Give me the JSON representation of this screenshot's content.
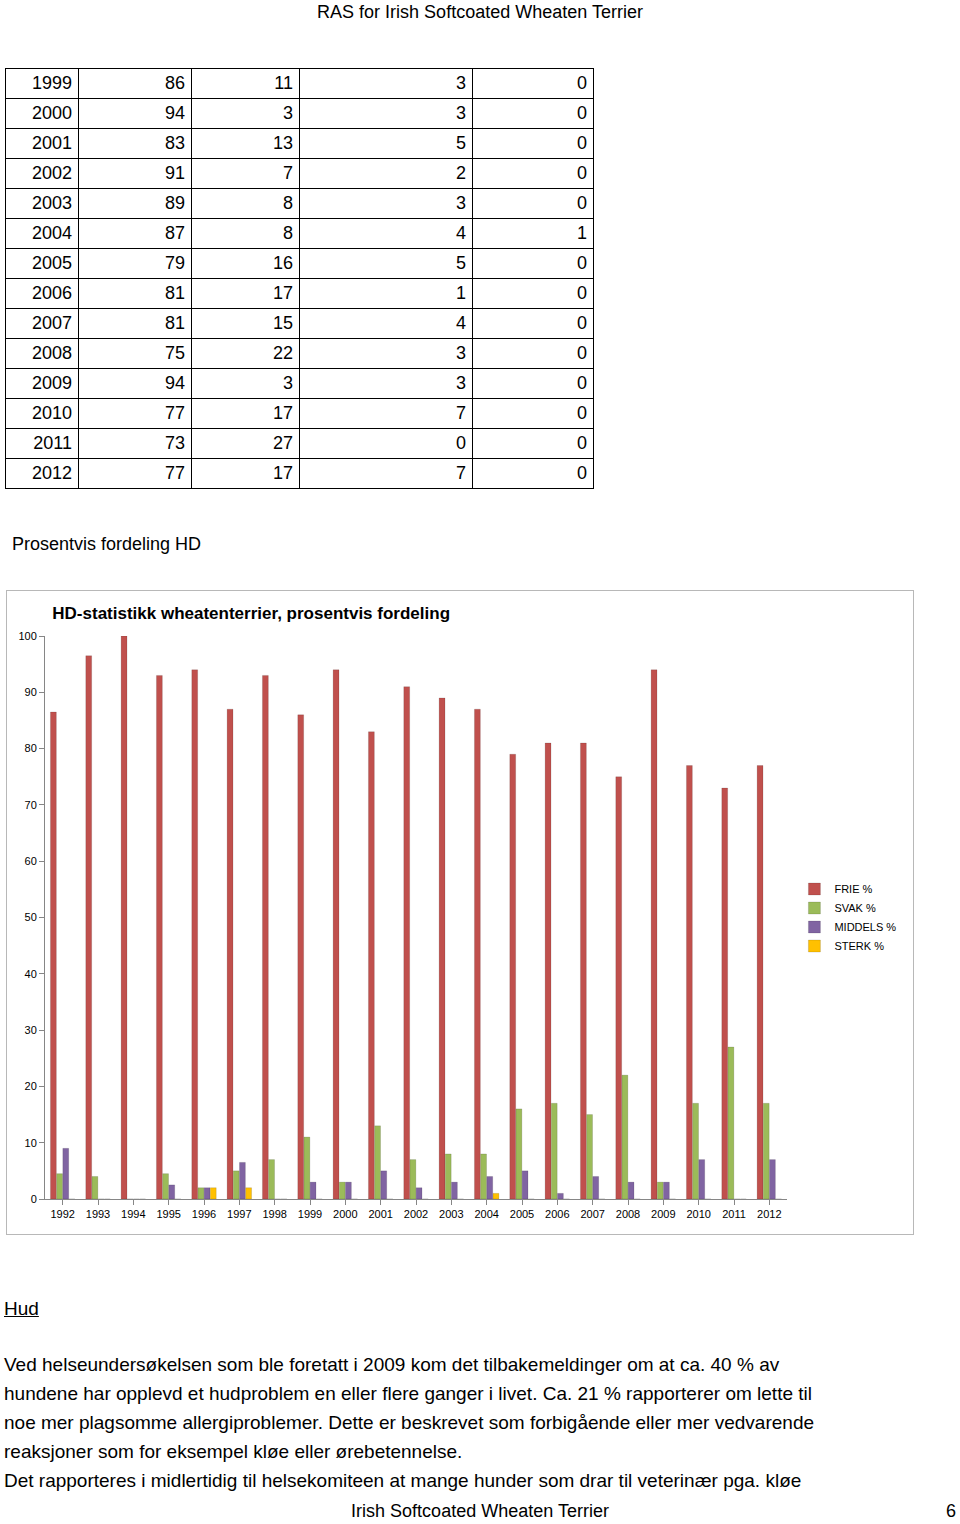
{
  "header": {
    "title": "RAS for Irish Softcoated Wheaten Terrier"
  },
  "table": {
    "rows": [
      [
        1999,
        86,
        11,
        3,
        0
      ],
      [
        2000,
        94,
        3,
        3,
        0
      ],
      [
        2001,
        83,
        13,
        5,
        0
      ],
      [
        2002,
        91,
        7,
        2,
        0
      ],
      [
        2003,
        89,
        8,
        3,
        0
      ],
      [
        2004,
        87,
        8,
        4,
        1
      ],
      [
        2005,
        79,
        16,
        5,
        0
      ],
      [
        2006,
        81,
        17,
        1,
        0
      ],
      [
        2007,
        81,
        15,
        4,
        0
      ],
      [
        2008,
        75,
        22,
        3,
        0
      ],
      [
        2009,
        94,
        3,
        3,
        0
      ],
      [
        2010,
        77,
        17,
        7,
        0
      ],
      [
        2011,
        73,
        27,
        0,
        0
      ],
      [
        2012,
        77,
        17,
        7,
        0
      ]
    ]
  },
  "caption": "Prosentvis fordeling HD",
  "chart_data": {
    "type": "bar",
    "title": "HD-statistikk wheatenterrier, prosentvis fordeling",
    "categories": [
      "1992",
      "1993",
      "1994",
      "1995",
      "1996",
      "1997",
      "1998",
      "1999",
      "2000",
      "2001",
      "2002",
      "2003",
      "2004",
      "2005",
      "2006",
      "2007",
      "2008",
      "2009",
      "2010",
      "2011",
      "2012"
    ],
    "series": [
      {
        "name": "FRIE %",
        "color": "#c0504d",
        "values": [
          86.5,
          96.5,
          100,
          93,
          94,
          87,
          93,
          86,
          94,
          83,
          91,
          89,
          87,
          79,
          81,
          81,
          75,
          94,
          77,
          73,
          77
        ]
      },
      {
        "name": "SVAK %",
        "color": "#9bbb59",
        "values": [
          4.5,
          4,
          0,
          4.5,
          2,
          5,
          7,
          11,
          3,
          13,
          7,
          8,
          8,
          16,
          17,
          15,
          22,
          3,
          17,
          27,
          17
        ]
      },
      {
        "name": "MIDDELS %",
        "color": "#8064a2",
        "values": [
          9,
          0,
          0,
          2.5,
          2,
          6.5,
          0,
          3,
          3,
          5,
          2,
          3,
          4,
          5,
          1,
          4,
          3,
          3,
          7,
          0,
          7
        ]
      },
      {
        "name": "STERK %",
        "color": "#ffc000",
        "values": [
          0,
          0,
          0,
          0,
          2,
          2,
          0,
          0,
          0,
          0,
          0,
          0,
          1,
          0,
          0,
          0,
          0,
          0,
          0,
          0,
          0
        ]
      }
    ],
    "ylim": [
      0,
      100
    ],
    "yticks": [
      0,
      10,
      20,
      30,
      40,
      50,
      60,
      70,
      80,
      90,
      100
    ],
    "grid": false,
    "legend": "right"
  },
  "section": {
    "heading": "Hud",
    "paragraphs": [
      [
        "Ved helseundersøkelsen som ble foretatt i 2009 kom det tilbakemeldinger om at ca. 40 % av",
        "hundene har opplevd et hudproblem en eller flere ganger i livet. Ca. 21 % rapporterer om lette til",
        "noe mer plagsomme allergiproblemer. Dette er beskrevet som forbigående eller mer vedvarende",
        "reaksjoner som for eksempel kløe eller ørebetennelse."
      ],
      [
        "Det rapporteres i midlertidig til helsekomiteen at mange hunder som drar til veterinær pga. kløe"
      ]
    ]
  },
  "footer": {
    "text": "Irish Softcoated Wheaten Terrier",
    "page": 6
  }
}
